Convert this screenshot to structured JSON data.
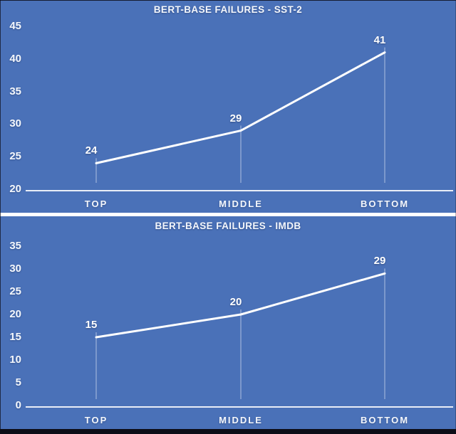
{
  "theme": {
    "background": "#4a71b8",
    "line_color": "#ffffff",
    "text_color": "#f4f7fc",
    "frame_color": "#0d0d17",
    "divider_color": "#ffffff"
  },
  "chart_data": [
    {
      "type": "line",
      "title": "BERT-BASE FAILURES - SST-2",
      "categories": [
        "TOP",
        "MIDDLE",
        "BOTTOM"
      ],
      "values": [
        24,
        29,
        41
      ],
      "yticks": [
        45,
        40,
        35,
        30,
        25,
        20
      ],
      "ylim": [
        20,
        45
      ],
      "xlabel": "",
      "ylabel": "",
      "grid": false,
      "legend": "none",
      "data_labels": [
        24,
        29,
        41
      ],
      "series_color": "#ffffff"
    },
    {
      "type": "line",
      "title": "BERT-BASE FAILURES - IMDB",
      "categories": [
        "TOP",
        "MIDDLE",
        "BOTTOM"
      ],
      "values": [
        15,
        20,
        29
      ],
      "yticks": [
        35,
        30,
        25,
        20,
        15,
        10,
        5,
        0
      ],
      "ylim": [
        0,
        35
      ],
      "xlabel": "",
      "ylabel": "",
      "grid": false,
      "legend": "none",
      "data_labels": [
        15,
        20,
        29
      ],
      "series_color": "#ffffff"
    }
  ]
}
